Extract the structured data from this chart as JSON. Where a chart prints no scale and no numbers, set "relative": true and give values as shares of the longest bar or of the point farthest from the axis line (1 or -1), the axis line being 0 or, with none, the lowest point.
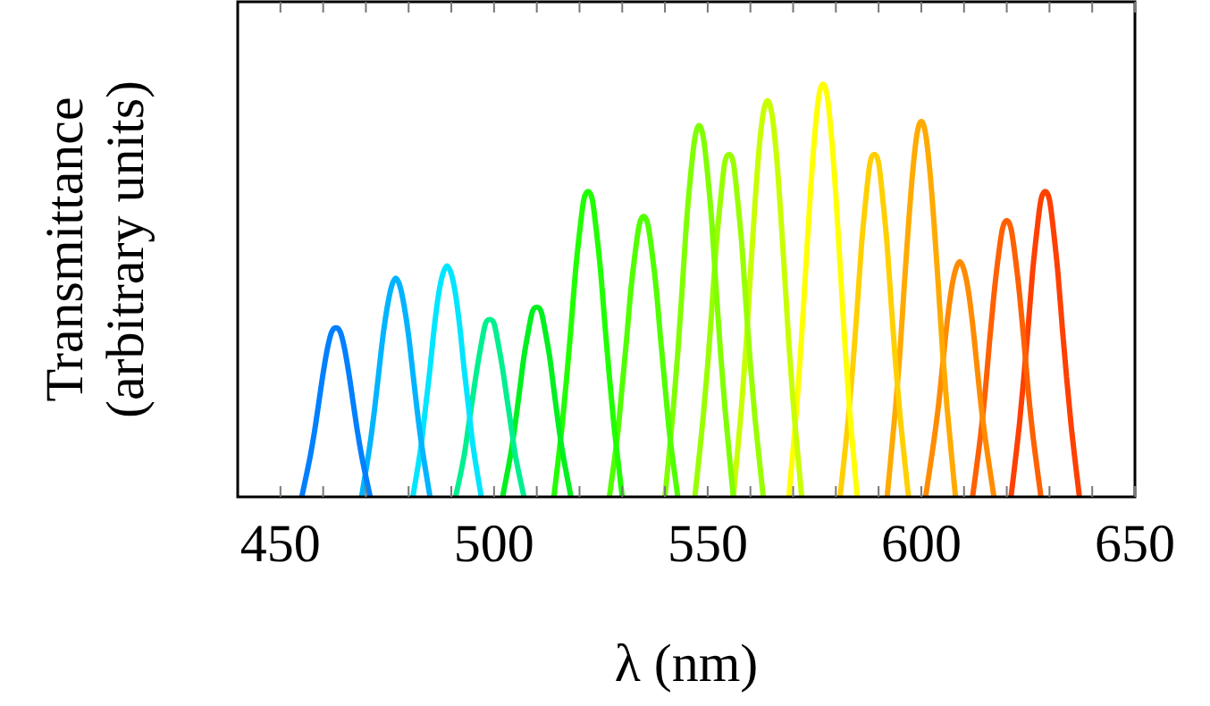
{
  "chart_data": {
    "type": "line",
    "relative": true,
    "xlabel": "λ (nm)",
    "ylabel": "Transmittance\n(arbitrary units)",
    "xlim": [
      440,
      650
    ],
    "xticks": [
      450,
      {
        "value": 460,
        "label": null
      },
      {
        "value": 470,
        "label": null
      },
      {
        "value": 480,
        "label": null
      },
      {
        "value": 490,
        "label": null
      },
      500,
      {
        "value": 510,
        "label": null
      },
      {
        "value": 520,
        "label": null
      },
      {
        "value": 530,
        "label": null
      },
      {
        "value": 540,
        "label": null
      },
      550,
      {
        "value": 560,
        "label": null
      },
      {
        "value": 570,
        "label": null
      },
      {
        "value": 580,
        "label": null
      },
      {
        "value": 590,
        "label": null
      },
      600,
      {
        "value": 610,
        "label": null
      },
      {
        "value": 620,
        "label": null
      },
      {
        "value": 630,
        "label": null
      },
      {
        "value": 640,
        "label": null
      },
      650
    ],
    "grid": false,
    "legend": false,
    "marker": "none",
    "line_style": "solid",
    "series": [
      {
        "color": "#0080ff",
        "x": [
          455,
          457,
          458,
          459,
          460,
          461,
          462,
          463,
          464,
          465,
          466,
          467,
          468,
          469,
          471
        ],
        "values": [
          0,
          0.1,
          0.16,
          0.23,
          0.3,
          0.36,
          0.4,
          0.41,
          0.4,
          0.36,
          0.3,
          0.23,
          0.16,
          0.1,
          0
        ]
      },
      {
        "color": "#00b4ff",
        "x": [
          469,
          471,
          472,
          473,
          474,
          475,
          476,
          477,
          478,
          479,
          480,
          481,
          482,
          483,
          485
        ],
        "values": [
          0,
          0.13,
          0.21,
          0.3,
          0.39,
          0.46,
          0.51,
          0.53,
          0.51,
          0.46,
          0.39,
          0.3,
          0.21,
          0.13,
          0
        ]
      },
      {
        "color": "#00e6ff",
        "x": [
          481,
          483,
          484,
          485,
          486,
          487,
          488,
          489,
          490,
          491,
          492,
          493,
          494,
          495,
          497
        ],
        "values": [
          0,
          0.13,
          0.22,
          0.31,
          0.41,
          0.49,
          0.54,
          0.56,
          0.54,
          0.49,
          0.41,
          0.31,
          0.22,
          0.13,
          0
        ]
      },
      {
        "color": "#00f090",
        "x": [
          491,
          493,
          494,
          495,
          496,
          497,
          498,
          499,
          500,
          501,
          502,
          503,
          504,
          505,
          507
        ],
        "values": [
          0,
          0.1,
          0.17,
          0.24,
          0.31,
          0.37,
          0.42,
          0.43,
          0.42,
          0.37,
          0.31,
          0.24,
          0.17,
          0.1,
          0
        ]
      },
      {
        "color": "#00f020",
        "x": [
          502,
          504,
          505,
          506,
          507,
          508,
          509,
          510,
          511,
          512,
          513,
          514,
          515,
          516,
          518
        ],
        "values": [
          0,
          0.11,
          0.18,
          0.26,
          0.34,
          0.4,
          0.45,
          0.46,
          0.45,
          0.4,
          0.34,
          0.26,
          0.18,
          0.11,
          0
        ]
      },
      {
        "color": "#20ff00",
        "x": [
          514,
          516,
          517,
          518,
          519,
          520,
          521,
          522,
          523,
          524,
          525,
          526,
          527,
          528,
          530
        ],
        "values": [
          0,
          0.18,
          0.29,
          0.41,
          0.54,
          0.64,
          0.72,
          0.74,
          0.72,
          0.64,
          0.54,
          0.41,
          0.29,
          0.18,
          0
        ]
      },
      {
        "color": "#50ff00",
        "x": [
          527,
          529,
          530,
          531,
          532,
          533,
          534,
          535,
          536,
          537,
          538,
          539,
          540,
          541,
          543
        ],
        "values": [
          0,
          0.16,
          0.27,
          0.38,
          0.5,
          0.59,
          0.66,
          0.68,
          0.66,
          0.59,
          0.5,
          0.38,
          0.27,
          0.16,
          0
        ]
      },
      {
        "color": "#80ff00",
        "x": [
          540,
          542,
          543,
          544,
          545,
          546,
          547,
          548,
          549,
          550,
          551,
          552,
          553,
          554,
          556
        ],
        "values": [
          0,
          0.22,
          0.35,
          0.5,
          0.66,
          0.78,
          0.87,
          0.9,
          0.87,
          0.78,
          0.66,
          0.5,
          0.35,
          0.22,
          0
        ]
      },
      {
        "color": "#99ff00",
        "x": [
          547,
          549,
          550,
          551,
          552,
          553,
          554,
          555,
          556,
          557,
          558,
          559,
          560,
          561,
          563
        ],
        "values": [
          0,
          0.2,
          0.32,
          0.46,
          0.61,
          0.72,
          0.81,
          0.83,
          0.81,
          0.72,
          0.61,
          0.46,
          0.32,
          0.2,
          0
        ]
      },
      {
        "color": "#c8ff00",
        "x": [
          556,
          558,
          559,
          560,
          561,
          562,
          563,
          564,
          565,
          566,
          567,
          568,
          569,
          570,
          572
        ],
        "values": [
          0,
          0.23,
          0.37,
          0.54,
          0.7,
          0.84,
          0.93,
          0.96,
          0.93,
          0.84,
          0.7,
          0.54,
          0.37,
          0.23,
          0
        ]
      },
      {
        "color": "#ffff00",
        "x": [
          569,
          571,
          572,
          573,
          574,
          575,
          576,
          577,
          578,
          579,
          580,
          581,
          582,
          583,
          585
        ],
        "values": [
          0,
          0.24,
          0.39,
          0.56,
          0.73,
          0.87,
          0.97,
          1,
          0.97,
          0.87,
          0.73,
          0.56,
          0.39,
          0.24,
          0
        ]
      },
      {
        "color": "#ffd000",
        "x": [
          581,
          583,
          584,
          585,
          586,
          587,
          588,
          589,
          590,
          591,
          592,
          593,
          594,
          595,
          597
        ],
        "values": [
          0,
          0.2,
          0.32,
          0.46,
          0.61,
          0.72,
          0.81,
          0.83,
          0.81,
          0.72,
          0.61,
          0.46,
          0.32,
          0.2,
          0
        ]
      },
      {
        "color": "#ffaa00",
        "x": [
          592,
          594,
          595,
          596,
          597,
          598,
          599,
          600,
          601,
          602,
          603,
          604,
          605,
          606,
          608
        ],
        "values": [
          0,
          0.22,
          0.35,
          0.51,
          0.66,
          0.79,
          0.88,
          0.91,
          0.88,
          0.79,
          0.66,
          0.51,
          0.35,
          0.22,
          0
        ]
      },
      {
        "color": "#ff8c00",
        "x": [
          601,
          603,
          604,
          605,
          606,
          607,
          608,
          609,
          610,
          611,
          612,
          613,
          614,
          615,
          617
        ],
        "values": [
          0,
          0.14,
          0.22,
          0.32,
          0.42,
          0.5,
          0.55,
          0.57,
          0.55,
          0.5,
          0.42,
          0.32,
          0.22,
          0.14,
          0
        ]
      },
      {
        "color": "#ff6000",
        "x": [
          612,
          614,
          615,
          616,
          617,
          618,
          619,
          620,
          621,
          622,
          623,
          624,
          625,
          626,
          628
        ],
        "values": [
          0,
          0.16,
          0.26,
          0.38,
          0.49,
          0.58,
          0.65,
          0.67,
          0.65,
          0.58,
          0.49,
          0.38,
          0.26,
          0.16,
          0
        ]
      },
      {
        "color": "#ff4000",
        "x": [
          621,
          623,
          624,
          625,
          626,
          627,
          628,
          629,
          630,
          631,
          632,
          633,
          634,
          635,
          637
        ],
        "values": [
          0,
          0.18,
          0.29,
          0.41,
          0.54,
          0.64,
          0.72,
          0.74,
          0.72,
          0.64,
          0.54,
          0.41,
          0.29,
          0.18,
          0
        ]
      }
    ]
  }
}
